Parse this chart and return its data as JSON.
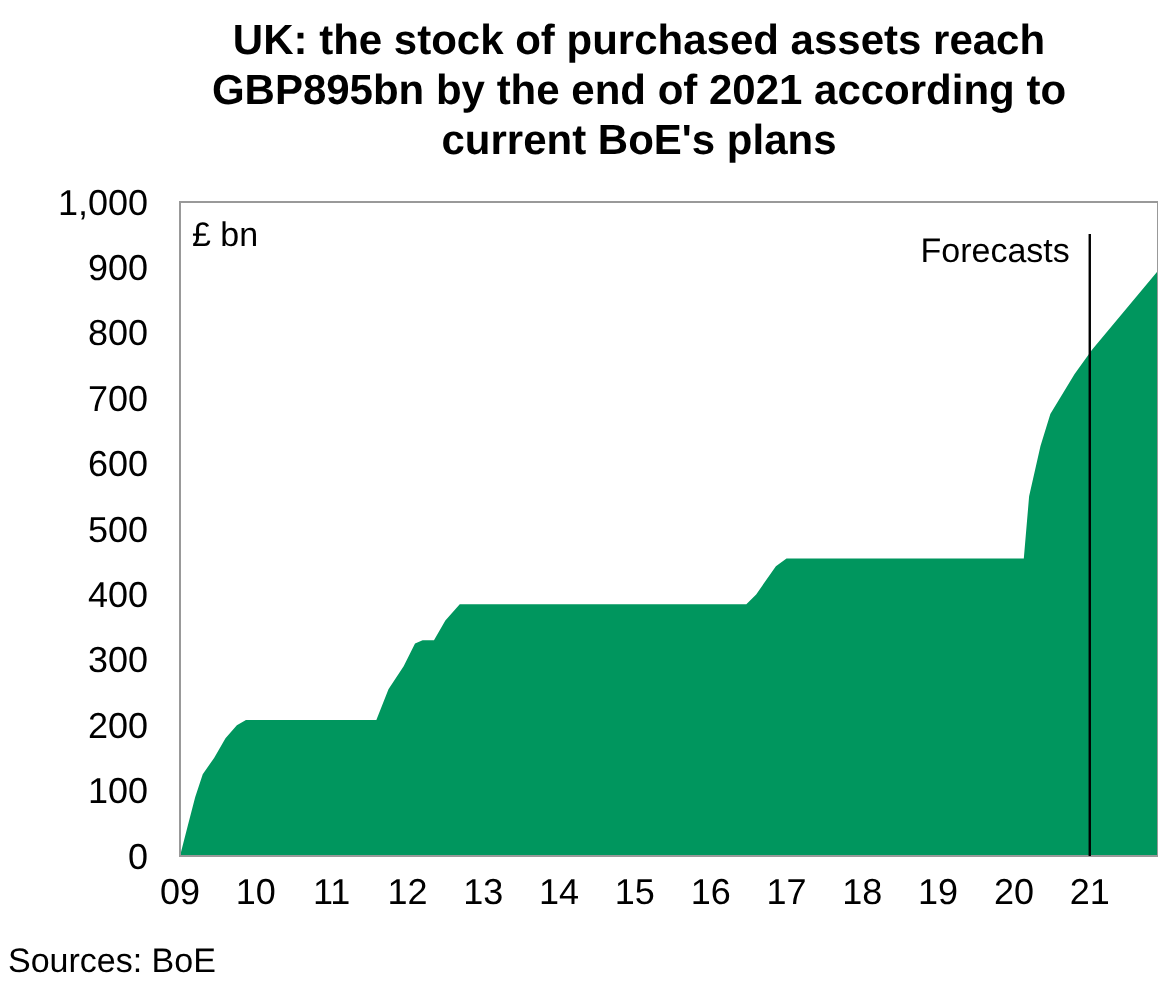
{
  "chart_data": {
    "type": "area",
    "title": "UK: the stock of purchased assets reach GBP895bn by the end of 2021 according to current BoE's plans",
    "ylabel": "£ bn",
    "x": [
      2009,
      2009.1,
      2009.2,
      2009.3,
      2009.45,
      2009.6,
      2009.75,
      2009.87,
      2011.59,
      2011.75,
      2011.95,
      2012.1,
      2012.2,
      2012.35,
      2012.5,
      2012.69,
      2016.47,
      2016.6,
      2016.86,
      2017.0,
      2020.13,
      2020.2,
      2020.35,
      2020.48,
      2020.8,
      2021.03,
      2021.9
    ],
    "series": [
      {
        "color": "#00965e",
        "values": [
          0,
          45,
          90,
          125,
          150,
          180,
          200,
          208,
          208,
          255,
          290,
          325,
          330,
          330,
          360,
          385,
          385,
          400,
          443,
          455,
          455,
          550,
          627,
          676,
          737,
          774,
          895
        ]
      }
    ],
    "xlim": [
      2009,
      2021.9
    ],
    "xticks": [
      {
        "value": 2009,
        "label": "09"
      },
      {
        "value": 2010,
        "label": "10"
      },
      {
        "value": 2011,
        "label": "11"
      },
      {
        "value": 2012,
        "label": "12"
      },
      {
        "value": 2013,
        "label": "13"
      },
      {
        "value": 2014,
        "label": "14"
      },
      {
        "value": 2015,
        "label": "15"
      },
      {
        "value": 2016,
        "label": "16"
      },
      {
        "value": 2017,
        "label": "17"
      },
      {
        "value": 2018,
        "label": "18"
      },
      {
        "value": 2019,
        "label": "19"
      },
      {
        "value": 2020,
        "label": "20"
      },
      {
        "value": 2021,
        "label": "21"
      }
    ],
    "ylim": [
      0,
      1000
    ],
    "yticks": [
      0,
      100,
      200,
      300,
      400,
      500,
      600,
      700,
      800,
      900,
      {
        "value": 1000,
        "label": "1,000"
      }
    ],
    "grid": false,
    "ref_lines": [
      {
        "axis": "x",
        "value": 2021.0,
        "label": "Forecasts",
        "color": "#000000"
      }
    ],
    "annotations": [
      "Sources: BoE"
    ]
  }
}
